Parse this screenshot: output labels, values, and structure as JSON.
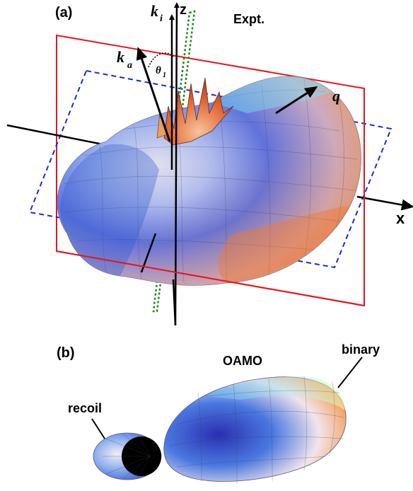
{
  "panel_a": {
    "label": "(a)",
    "title": "Expt.",
    "axis_z": "z",
    "axis_x": "x",
    "vector_ki": "k",
    "vector_ki_sub": "i",
    "vector_ka": "k",
    "vector_ka_sub": "a",
    "vector_q": "q",
    "angle": "θ",
    "angle_sub": "1"
  },
  "panel_b": {
    "label": "(b)",
    "title": "OAMO",
    "lobe_binary": "binary",
    "lobe_recoil": "recoil"
  },
  "colors": {
    "red_plane": "#e8141c",
    "blue_plane": "#1a2bd6",
    "green_plane": "#1d8a1d",
    "lobe_blue": "#2f4fd0",
    "lobe_orange": "#f08a3c",
    "lobe_cyan": "#7fe3f0"
  }
}
